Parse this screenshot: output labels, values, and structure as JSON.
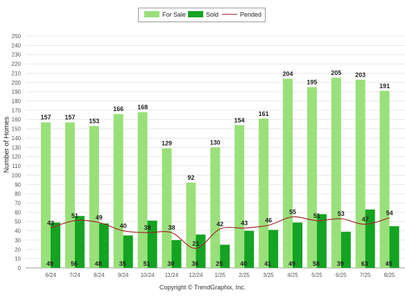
{
  "legend": {
    "for_sale": "For Sale",
    "sold": "Sold",
    "pended": "Pended"
  },
  "copyright": "Copyright © TrendGraphix, Inc.",
  "chart_data": {
    "type": "bar",
    "ylabel": "Number of Homes",
    "ylim": [
      0,
      250
    ],
    "yticks": [
      0,
      10,
      20,
      30,
      40,
      50,
      60,
      70,
      80,
      90,
      100,
      110,
      120,
      130,
      140,
      150,
      160,
      170,
      180,
      190,
      200,
      210,
      220,
      230,
      240,
      250
    ],
    "grid": true,
    "legend_position": "top-center",
    "categories": [
      "6/24",
      "7/24",
      "8/24",
      "9/24",
      "10/24",
      "11/24",
      "12/24",
      "1/25",
      "2/25",
      "3/25",
      "4/25",
      "5/25",
      "6/25",
      "7/25",
      "8/25"
    ],
    "series": [
      {
        "name": "For Sale",
        "type": "bar",
        "color": "#99e07a",
        "values": [
          157,
          157,
          153,
          166,
          168,
          129,
          92,
          130,
          154,
          161,
          204,
          195,
          205,
          203,
          191
        ]
      },
      {
        "name": "Sold",
        "type": "bar",
        "color": "#14a322",
        "values": [
          49,
          56,
          48,
          35,
          51,
          30,
          36,
          25,
          40,
          41,
          49,
          58,
          39,
          63,
          45
        ]
      },
      {
        "name": "Pended",
        "type": "line",
        "color": "#a3282a",
        "values": [
          43,
          51,
          49,
          40,
          38,
          38,
          21,
          42,
          43,
          46,
          55,
          51,
          53,
          47,
          54
        ]
      }
    ]
  }
}
